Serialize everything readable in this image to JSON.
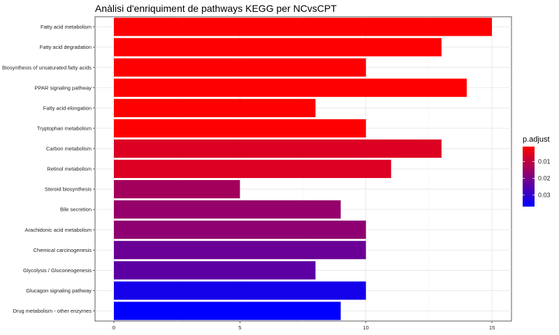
{
  "chart_data": {
    "type": "bar",
    "orientation": "horizontal",
    "title": "Anàlisi d'enriquiment de pathways KEGG per NCvsCPT",
    "xlabel": "",
    "ylabel": "",
    "xlim": [
      0,
      15.8
    ],
    "x_ticks": [
      "0",
      "5",
      "10",
      "15"
    ],
    "grid": true,
    "categories": [
      "Fatty acid metabolism",
      "Fatty acid degradation",
      "Biosynthesis of unsaturated fatty acids",
      "PPAR signaling pathway",
      "Fatty acid elongation",
      "Tryptophan metabolism",
      "Carbon metabolism",
      "Retinol metabolism",
      "Steroid biosynthesis",
      "Bile secretion",
      "Arachidonic acid metabolism",
      "Chemical carcinogenesis",
      "Glycolysis / Gluconeogenesis",
      "Glucagon signaling pathway",
      "Drug metabolism - other enzymes"
    ],
    "values": [
      15,
      13,
      10,
      14,
      8,
      10,
      13,
      11,
      5,
      9,
      10,
      10,
      8,
      10,
      9
    ],
    "p_adjust": [
      0.001,
      0.001,
      0.001,
      0.001,
      0.001,
      0.001,
      0.006,
      0.006,
      0.014,
      0.016,
      0.017,
      0.022,
      0.024,
      0.034,
      0.037
    ],
    "legend": {
      "title": "p.adjust",
      "placement": "right",
      "ticks": [
        "0.01",
        "0.02",
        "0.03"
      ],
      "tick_values": [
        0.01,
        0.02,
        0.03
      ],
      "range": [
        0.001,
        0.037
      ],
      "color_low": "#ff0000",
      "color_high": "#0000ff"
    }
  }
}
